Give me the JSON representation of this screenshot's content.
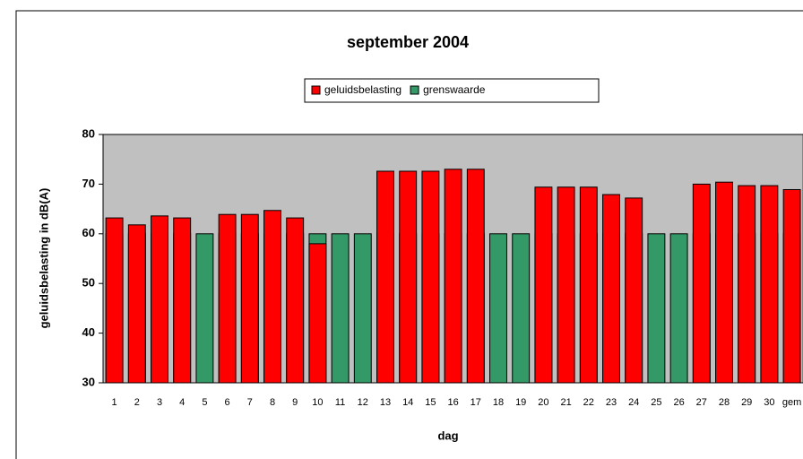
{
  "chart_data": {
    "type": "bar",
    "title": "september 2004",
    "x_label": "dag",
    "y_label": "geluidsbelasting in dB(A)",
    "categories": [
      "1",
      "2",
      "3",
      "4",
      "5",
      "6",
      "7",
      "8",
      "9",
      "10",
      "11",
      "12",
      "13",
      "14",
      "15",
      "16",
      "17",
      "18",
      "19",
      "20",
      "21",
      "22",
      "23",
      "24",
      "25",
      "26",
      "27",
      "28",
      "29",
      "30",
      "gem"
    ],
    "series": [
      {
        "name": "geluidsbelasting",
        "color": "#ff0000",
        "values": [
          63.2,
          61.8,
          63.6,
          63.2,
          null,
          63.9,
          63.9,
          64.7,
          63.2,
          58,
          null,
          null,
          72.6,
          72.6,
          72.6,
          73,
          73,
          null,
          null,
          69.4,
          69.4,
          69.4,
          67.9,
          67.2,
          null,
          null,
          70,
          70.4,
          69.7,
          69.7,
          68.9
        ]
      },
      {
        "name": "grenswaarde",
        "color": "#339966",
        "values": [
          60,
          60,
          60,
          60,
          60,
          60,
          60,
          60,
          60,
          60,
          60,
          60,
          60,
          60,
          60,
          60,
          60,
          60,
          60,
          60,
          60,
          60,
          60,
          60,
          60,
          60,
          60,
          60,
          60,
          60,
          60
        ]
      }
    ],
    "ylim": [
      30,
      80
    ],
    "yticks": [
      30,
      40,
      50,
      60,
      70,
      80
    ],
    "legend": "top",
    "plot_background": "#c0c0c0"
  }
}
